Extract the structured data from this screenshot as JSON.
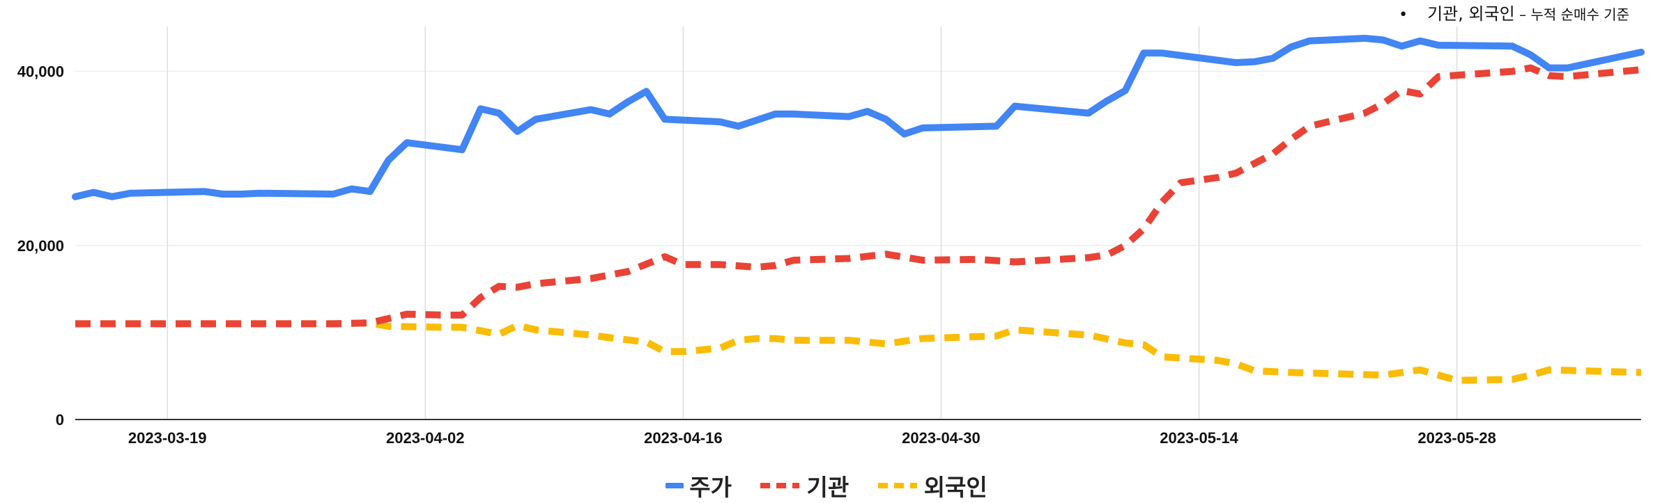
{
  "note": {
    "bullet": "•",
    "main": "기관, 외국인",
    "sub": " – 누적 순매수 기준"
  },
  "colors": {
    "주가": "#4285F4",
    "기관": "#EA4335",
    "외국인": "#FBBC04",
    "grid": "#dddddd",
    "hgrid": "#eeeeee",
    "axis": "#333333"
  },
  "chart_data": {
    "type": "line",
    "title": "",
    "xlabel": "",
    "ylabel": "",
    "xlim": [
      "2023-03-14",
      "2023-06-07"
    ],
    "ylim": [
      0,
      45000
    ],
    "yticks": [
      0,
      20000,
      40000
    ],
    "ytick_labels": [
      "0",
      "20,000",
      "40,000"
    ],
    "xticks": [
      "2023-03-19",
      "2023-04-02",
      "2023-04-16",
      "2023-04-30",
      "2023-05-14",
      "2023-05-28"
    ],
    "grid": true,
    "legend": "bottom",
    "series": [
      {
        "name": "주가",
        "style": "solid",
        "points": [
          [
            "2023-03-14",
            25600
          ],
          [
            "2023-03-15",
            26100
          ],
          [
            "2023-03-16",
            25600
          ],
          [
            "2023-03-17",
            26000
          ],
          [
            "2023-03-21",
            26200
          ],
          [
            "2023-03-22",
            25900
          ],
          [
            "2023-03-23",
            25900
          ],
          [
            "2023-03-24",
            26000
          ],
          [
            "2023-03-28",
            25900
          ],
          [
            "2023-03-29",
            26500
          ],
          [
            "2023-03-30",
            26200
          ],
          [
            "2023-03-31",
            29800
          ],
          [
            "2023-04-01",
            31800
          ],
          [
            "2023-04-04",
            31000
          ],
          [
            "2023-04-05",
            35700
          ],
          [
            "2023-04-06",
            35200
          ],
          [
            "2023-04-07",
            33100
          ],
          [
            "2023-04-08",
            34500
          ],
          [
            "2023-04-11",
            35600
          ],
          [
            "2023-04-12",
            35100
          ],
          [
            "2023-04-13",
            36500
          ],
          [
            "2023-04-14",
            37700
          ],
          [
            "2023-04-15",
            34500
          ],
          [
            "2023-04-18",
            34200
          ],
          [
            "2023-04-19",
            33700
          ],
          [
            "2023-04-21",
            35100
          ],
          [
            "2023-04-22",
            35100
          ],
          [
            "2023-04-25",
            34800
          ],
          [
            "2023-04-26",
            35400
          ],
          [
            "2023-04-27",
            34500
          ],
          [
            "2023-04-28",
            32800
          ],
          [
            "2023-04-29",
            33500
          ],
          [
            "2023-05-03",
            33700
          ],
          [
            "2023-05-04",
            36000
          ],
          [
            "2023-05-08",
            35200
          ],
          [
            "2023-05-09",
            36600
          ],
          [
            "2023-05-10",
            37800
          ],
          [
            "2023-05-11",
            42100
          ],
          [
            "2023-05-12",
            42100
          ],
          [
            "2023-05-16",
            41000
          ],
          [
            "2023-05-17",
            41100
          ],
          [
            "2023-05-18",
            41500
          ],
          [
            "2023-05-19",
            42800
          ],
          [
            "2023-05-20",
            43500
          ],
          [
            "2023-05-23",
            43800
          ],
          [
            "2023-05-24",
            43600
          ],
          [
            "2023-05-25",
            42900
          ],
          [
            "2023-05-26",
            43500
          ],
          [
            "2023-05-27",
            43000
          ],
          [
            "2023-05-31",
            42900
          ],
          [
            "2023-06-01",
            41900
          ],
          [
            "2023-06-02",
            40400
          ],
          [
            "2023-06-03",
            40400
          ],
          [
            "2023-06-07",
            42200
          ]
        ]
      },
      {
        "name": "기관",
        "style": "dashed",
        "points": [
          [
            "2023-03-14",
            11000
          ],
          [
            "2023-03-28",
            11000
          ],
          [
            "2023-03-30",
            11100
          ],
          [
            "2023-04-01",
            12100
          ],
          [
            "2023-04-03",
            12000
          ],
          [
            "2023-04-04",
            12000
          ],
          [
            "2023-04-05",
            14000
          ],
          [
            "2023-04-06",
            15300
          ],
          [
            "2023-04-07",
            15200
          ],
          [
            "2023-04-08",
            15600
          ],
          [
            "2023-04-11",
            16200
          ],
          [
            "2023-04-13",
            17000
          ],
          [
            "2023-04-15",
            18700
          ],
          [
            "2023-04-16",
            17800
          ],
          [
            "2023-04-18",
            17800
          ],
          [
            "2023-04-20",
            17500
          ],
          [
            "2023-04-21",
            17700
          ],
          [
            "2023-04-22",
            18300
          ],
          [
            "2023-04-25",
            18500
          ],
          [
            "2023-04-27",
            19000
          ],
          [
            "2023-04-29",
            18300
          ],
          [
            "2023-05-02",
            18400
          ],
          [
            "2023-05-04",
            18100
          ],
          [
            "2023-05-08",
            18600
          ],
          [
            "2023-05-09",
            18900
          ],
          [
            "2023-05-10",
            20000
          ],
          [
            "2023-05-11",
            21900
          ],
          [
            "2023-05-12",
            25000
          ],
          [
            "2023-05-13",
            27200
          ],
          [
            "2023-05-15",
            27800
          ],
          [
            "2023-05-16",
            28300
          ],
          [
            "2023-05-18",
            30500
          ],
          [
            "2023-05-19",
            32200
          ],
          [
            "2023-05-20",
            33700
          ],
          [
            "2023-05-23",
            35200
          ],
          [
            "2023-05-24",
            36300
          ],
          [
            "2023-05-25",
            37800
          ],
          [
            "2023-05-26",
            37400
          ],
          [
            "2023-05-27",
            39400
          ],
          [
            "2023-05-31",
            40000
          ],
          [
            "2023-06-01",
            40400
          ],
          [
            "2023-06-02",
            39500
          ],
          [
            "2023-06-03",
            39400
          ],
          [
            "2023-06-07",
            40200
          ]
        ]
      },
      {
        "name": "외국인",
        "style": "dashed",
        "points": [
          [
            "2023-03-14",
            11000
          ],
          [
            "2023-03-28",
            11000
          ],
          [
            "2023-03-30",
            11100
          ],
          [
            "2023-03-31",
            10700
          ],
          [
            "2023-04-03",
            10600
          ],
          [
            "2023-04-04",
            10600
          ],
          [
            "2023-04-06",
            9800
          ],
          [
            "2023-04-07",
            10800
          ],
          [
            "2023-04-08",
            10300
          ],
          [
            "2023-04-11",
            9700
          ],
          [
            "2023-04-12",
            9400
          ],
          [
            "2023-04-14",
            8900
          ],
          [
            "2023-04-15",
            7800
          ],
          [
            "2023-04-16",
            7800
          ],
          [
            "2023-04-18",
            8200
          ],
          [
            "2023-04-19",
            9100
          ],
          [
            "2023-04-20",
            9300
          ],
          [
            "2023-04-21",
            9300
          ],
          [
            "2023-04-22",
            9100
          ],
          [
            "2023-04-25",
            9100
          ],
          [
            "2023-04-27",
            8700
          ],
          [
            "2023-04-29",
            9300
          ],
          [
            "2023-05-03",
            9600
          ],
          [
            "2023-05-04",
            10300
          ],
          [
            "2023-05-08",
            9700
          ],
          [
            "2023-05-10",
            8800
          ],
          [
            "2023-05-11",
            8600
          ],
          [
            "2023-05-12",
            7200
          ],
          [
            "2023-05-15",
            6800
          ],
          [
            "2023-05-16",
            6400
          ],
          [
            "2023-05-17",
            5600
          ],
          [
            "2023-05-19",
            5400
          ],
          [
            "2023-05-24",
            5100
          ],
          [
            "2023-05-26",
            5700
          ],
          [
            "2023-05-27",
            5100
          ],
          [
            "2023-05-28",
            4500
          ],
          [
            "2023-05-31",
            4600
          ],
          [
            "2023-06-01",
            5100
          ],
          [
            "2023-06-02",
            5700
          ],
          [
            "2023-06-07",
            5400
          ]
        ]
      }
    ]
  }
}
